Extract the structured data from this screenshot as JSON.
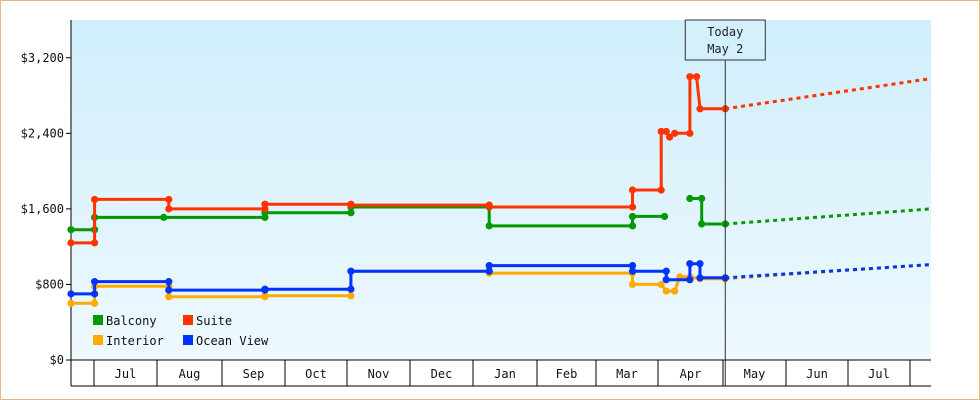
{
  "chart_data": {
    "type": "line",
    "ylim": [
      0,
      3600
    ],
    "yticks": [
      "$0",
      "$800",
      "$1,600",
      "$2,400",
      "$3,200"
    ],
    "ytick_values": [
      0,
      800,
      1600,
      2400,
      3200
    ],
    "xtick_labels": [
      "Jul",
      "Aug",
      "Sep",
      "Oct",
      "Nov",
      "Dec",
      "Jan",
      "Feb",
      "Mar",
      "Apr",
      "May",
      "Jun",
      "Jul"
    ],
    "xlim": [
      0,
      51
    ],
    "today": {
      "line1": "Today",
      "line2": "May 2",
      "x": 38.8
    },
    "grid": false,
    "legend_position": "bottom-left",
    "series": [
      {
        "name": "Balcony",
        "color": "#009900",
        "points": [
          [
            0,
            1380
          ],
          [
            1.4,
            1380
          ],
          [
            1.4,
            1510
          ],
          [
            5.5,
            1510
          ],
          [
            11.5,
            1510
          ],
          [
            11.5,
            1560
          ],
          [
            16.6,
            1560
          ],
          [
            16.6,
            1620
          ],
          [
            24.8,
            1620
          ],
          [
            24.8,
            1420
          ],
          [
            33.3,
            1420
          ],
          [
            33.3,
            1520
          ],
          [
            35.2,
            1520
          ]
        ],
        "segment2": [
          [
            36.7,
            1710
          ],
          [
            37.4,
            1710
          ],
          [
            37.4,
            1440
          ],
          [
            38.8,
            1440
          ]
        ],
        "forecast": [
          [
            38.8,
            1440
          ],
          [
            51,
            1600
          ]
        ]
      },
      {
        "name": "Suite",
        "color": "#ff3300",
        "points": [
          [
            0,
            1240
          ],
          [
            1.4,
            1240
          ],
          [
            1.4,
            1700
          ],
          [
            5.8,
            1700
          ],
          [
            5.8,
            1600
          ],
          [
            11.5,
            1600
          ],
          [
            11.5,
            1650
          ],
          [
            16.6,
            1650
          ],
          [
            16.6,
            1640
          ],
          [
            24.8,
            1640
          ],
          [
            24.8,
            1620
          ],
          [
            33.3,
            1620
          ],
          [
            33.3,
            1800
          ],
          [
            35.0,
            1800
          ],
          [
            35.0,
            2420
          ],
          [
            35.3,
            2420
          ],
          [
            35.5,
            2360
          ],
          [
            35.8,
            2400
          ],
          [
            36.7,
            2400
          ],
          [
            36.7,
            3000
          ],
          [
            37.1,
            3000
          ],
          [
            37.3,
            2660
          ],
          [
            38.8,
            2660
          ]
        ],
        "forecast": [
          [
            38.8,
            2660
          ],
          [
            51,
            2980
          ]
        ]
      },
      {
        "name": "Interior",
        "color": "#ffaa00",
        "points": [
          [
            0,
            600
          ],
          [
            1.4,
            600
          ],
          [
            1.4,
            780
          ],
          [
            5.8,
            780
          ],
          [
            5.8,
            670
          ],
          [
            11.5,
            670
          ],
          [
            11.5,
            680
          ],
          [
            16.6,
            680
          ],
          [
            16.6,
            940
          ],
          [
            24.8,
            940
          ],
          [
            24.8,
            920
          ],
          [
            33.3,
            920
          ],
          [
            33.3,
            800
          ],
          [
            35.0,
            800
          ],
          [
            35.3,
            730
          ],
          [
            35.8,
            730
          ],
          [
            36.1,
            880
          ],
          [
            36.7,
            880
          ],
          [
            37.3,
            860
          ],
          [
            38.8,
            860
          ]
        ],
        "forecast": [
          [
            38.8,
            860
          ],
          [
            51,
            1010
          ]
        ]
      },
      {
        "name": "Ocean View",
        "color": "#0033ff",
        "points": [
          [
            0,
            700
          ],
          [
            1.4,
            700
          ],
          [
            1.4,
            830
          ],
          [
            5.8,
            830
          ],
          [
            5.8,
            740
          ],
          [
            11.5,
            740
          ],
          [
            11.5,
            750
          ],
          [
            16.6,
            750
          ],
          [
            16.6,
            940
          ],
          [
            24.8,
            940
          ],
          [
            24.8,
            1000
          ],
          [
            33.3,
            1000
          ],
          [
            33.3,
            940
          ],
          [
            35.3,
            940
          ],
          [
            35.3,
            850
          ],
          [
            36.7,
            850
          ],
          [
            36.7,
            1020
          ],
          [
            37.3,
            1020
          ],
          [
            37.3,
            870
          ],
          [
            38.8,
            870
          ]
        ],
        "forecast": [
          [
            38.8,
            870
          ],
          [
            51,
            1010
          ]
        ]
      }
    ]
  }
}
